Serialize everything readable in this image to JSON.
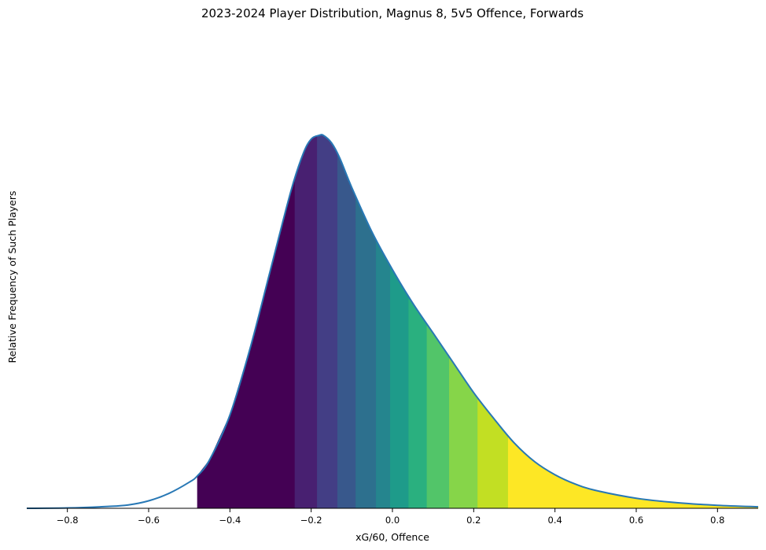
{
  "chart_data": {
    "type": "area",
    "title": "2023-2024 Player Distribution, Magnus 8, 5v5 Offence, Forwards",
    "xlabel": "xG/60, Offence",
    "ylabel": "Relative Frequency of Such Players",
    "xlim": [
      -0.9,
      0.9
    ],
    "ylim": [
      0,
      1.0
    ],
    "x_ticks": [
      -0.8,
      -0.6,
      -0.4,
      -0.2,
      0.0,
      0.2,
      0.4,
      0.6,
      0.8
    ],
    "x_tick_labels": [
      "−0.8",
      "−0.6",
      "−0.4",
      "−0.2",
      "0.0",
      "0.2",
      "0.4",
      "0.6",
      "0.8"
    ],
    "y_ticks_visible": false,
    "grid": false,
    "line_color": "#2878b5",
    "curve": {
      "x": [
        -0.9,
        -0.8,
        -0.7,
        -0.65,
        -0.6,
        -0.55,
        -0.5,
        -0.48,
        -0.45,
        -0.4,
        -0.35,
        -0.3,
        -0.25,
        -0.22,
        -0.2,
        -0.18,
        -0.17,
        -0.15,
        -0.13,
        -0.1,
        -0.05,
        0.0,
        0.05,
        0.1,
        0.15,
        0.2,
        0.25,
        0.3,
        0.35,
        0.4,
        0.45,
        0.5,
        0.6,
        0.7,
        0.8,
        0.9
      ],
      "y": [
        0.0,
        0.001,
        0.005,
        0.009,
        0.02,
        0.04,
        0.07,
        0.087,
        0.13,
        0.25,
        0.43,
        0.64,
        0.85,
        0.95,
        0.99,
        1.0,
        1.0,
        0.98,
        0.94,
        0.86,
        0.74,
        0.64,
        0.55,
        0.47,
        0.39,
        0.31,
        0.24,
        0.175,
        0.125,
        0.09,
        0.065,
        0.048,
        0.027,
        0.015,
        0.008,
        0.004
      ]
    },
    "bands": [
      {
        "from": -0.48,
        "to": -0.24,
        "color": "#440154"
      },
      {
        "from": -0.24,
        "to": -0.185,
        "color": "#482071"
      },
      {
        "from": -0.185,
        "to": -0.135,
        "color": "#433e85"
      },
      {
        "from": -0.135,
        "to": -0.09,
        "color": "#38588c"
      },
      {
        "from": -0.09,
        "to": -0.04,
        "color": "#2d708e"
      },
      {
        "from": -0.04,
        "to": -0.005,
        "color": "#25858e"
      },
      {
        "from": -0.005,
        "to": 0.04,
        "color": "#1e9b8a"
      },
      {
        "from": 0.04,
        "to": 0.085,
        "color": "#2ab07f"
      },
      {
        "from": 0.085,
        "to": 0.14,
        "color": "#52c569"
      },
      {
        "from": 0.14,
        "to": 0.21,
        "color": "#86d549"
      },
      {
        "from": 0.21,
        "to": 0.285,
        "color": "#c2df23"
      },
      {
        "from": 0.285,
        "to": 0.9,
        "color": "#fde725"
      }
    ]
  }
}
